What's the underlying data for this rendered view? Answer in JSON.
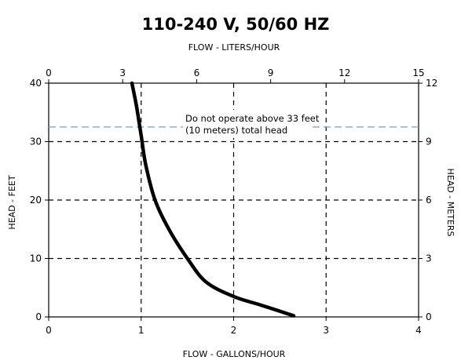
{
  "chart_data": {
    "type": "line",
    "title": "110-240 V, 50/60 HZ",
    "xlabel_bottom": "FLOW - GALLONS/HOUR",
    "xlabel_top": "FLOW - LITERS/HOUR",
    "ylabel_left": "HEAD - FEET",
    "ylabel_right": "HEAD - METERS",
    "xlim": [
      0,
      4
    ],
    "ylim": [
      0,
      40
    ],
    "xticks_bottom": [
      "0",
      "1",
      "2",
      "3",
      "4"
    ],
    "xticks_top": [
      "0",
      "3",
      "6",
      "9",
      "12",
      "15"
    ],
    "yticks_left": [
      "0",
      "10",
      "20",
      "30",
      "40"
    ],
    "yticks_right": [
      "0",
      "3",
      "6",
      "9",
      "12"
    ],
    "grid": true,
    "series": [
      {
        "x": [
          0.9,
          0.95,
          1.0,
          1.05,
          1.15,
          1.3,
          1.5,
          1.7,
          2.0,
          2.3,
          2.65
        ],
        "y": [
          40,
          36,
          31,
          26,
          20,
          15,
          10,
          6,
          3.5,
          2,
          0.2
        ],
        "color": "#000000"
      }
    ],
    "annotation": {
      "text_line1": "Do not operate above 33 feet",
      "text_line2": "(10 meters) total head",
      "y_value": 32.5,
      "color": "#6fa3c7"
    }
  }
}
